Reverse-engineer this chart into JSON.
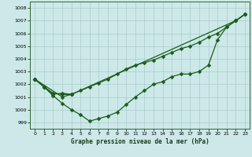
{
  "title": "Graphe pression niveau de la mer (hPa)",
  "background_color": "#cce8e8",
  "grid_color": "#aacccc",
  "line_color": "#1a5c1a",
  "ylim": [
    998.5,
    1008.5
  ],
  "xlim": [
    -0.5,
    23.5
  ],
  "yticks": [
    999,
    1000,
    1001,
    1002,
    1003,
    1004,
    1005,
    1006,
    1007,
    1008
  ],
  "xticks": [
    0,
    1,
    2,
    3,
    4,
    5,
    6,
    7,
    8,
    9,
    10,
    11,
    12,
    13,
    14,
    15,
    16,
    17,
    18,
    19,
    20,
    21,
    22,
    23
  ],
  "line1_x": [
    0,
    1,
    2,
    3,
    4,
    5,
    6,
    7,
    8,
    9,
    10,
    11,
    12,
    13,
    14,
    15,
    16,
    17,
    18,
    19,
    20,
    21,
    22,
    23
  ],
  "line1_y": [
    1002.4,
    1001.8,
    1001.2,
    1001.3,
    1001.2,
    1001.5,
    1001.8,
    1002.1,
    1002.4,
    1002.8,
    1003.2,
    1003.5,
    1003.7,
    1003.9,
    1004.2,
    1004.5,
    1004.8,
    1005.0,
    1005.3,
    1005.7,
    1006.0,
    1006.5,
    1007.0,
    1007.5
  ],
  "line2_x": [
    0,
    1,
    2,
    3,
    4,
    5,
    6,
    7,
    8,
    9,
    10,
    11,
    12,
    13,
    14,
    15,
    16,
    17,
    18,
    19,
    20,
    21,
    22,
    23
  ],
  "line2_y": [
    1002.4,
    1001.8,
    1001.1,
    1000.5,
    1000.0,
    999.6,
    999.1,
    999.3,
    999.5,
    999.8,
    1000.4,
    1001.0,
    1001.5,
    1002.0,
    1002.2,
    1002.6,
    1002.8,
    1002.8,
    1003.0,
    1003.5,
    1005.5,
    1006.5,
    1007.0,
    1007.5
  ],
  "line3_x": [
    0,
    3,
    4,
    22,
    23
  ],
  "line3_y": [
    1002.4,
    1001.0,
    1001.2,
    1007.0,
    1007.5
  ],
  "line4_x": [
    0,
    1,
    2,
    3,
    4
  ],
  "line4_y": [
    1002.4,
    1001.8,
    1001.3,
    1001.2,
    1001.2
  ]
}
